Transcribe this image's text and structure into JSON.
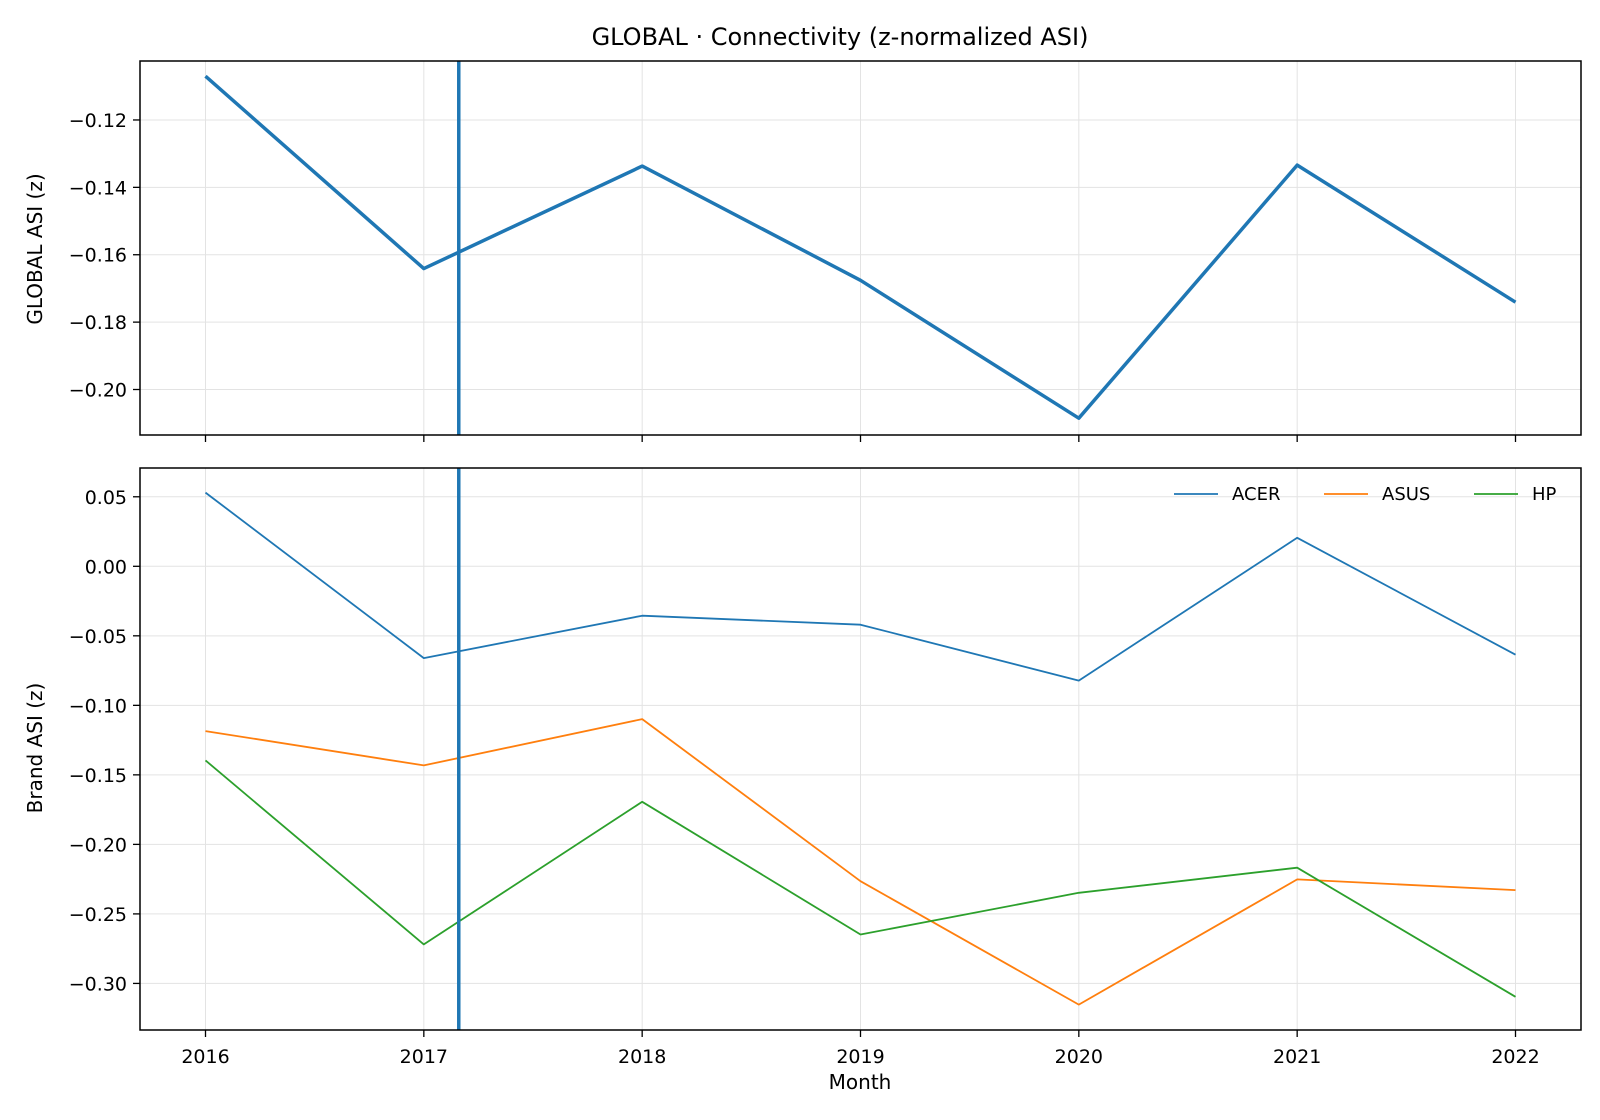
{
  "chart_data": [
    {
      "type": "line",
      "title": "GLOBAL · Connectivity (z-normalized ASI)",
      "xlabel": "",
      "ylabel": "GLOBAL ASI (z)",
      "x": [
        2016,
        2017,
        2018,
        2019,
        2020,
        2021,
        2022
      ],
      "xlim": [
        2015.7,
        2022.3
      ],
      "ylim": [
        -0.2135,
        -0.1025
      ],
      "yticks": [
        -0.12,
        -0.14,
        -0.16,
        -0.18,
        -0.2
      ],
      "ytick_labels": [
        "−0.12",
        "−0.14",
        "−0.16",
        "−0.18",
        "−0.20"
      ],
      "grid": true,
      "marker_x": 2017.16,
      "series": [
        {
          "color": "#1f77b4",
          "values": [
            -0.107,
            -0.1641,
            -0.1337,
            -0.1676,
            -0.2085,
            -0.1334,
            -0.1741
          ]
        }
      ]
    },
    {
      "type": "line",
      "title": "",
      "xlabel": "Month",
      "ylabel": "Brand ASI (z)",
      "x": [
        2016,
        2017,
        2018,
        2019,
        2020,
        2021,
        2022
      ],
      "xticks": [
        2016,
        2017,
        2018,
        2019,
        2020,
        2021,
        2022
      ],
      "xtick_labels": [
        "2016",
        "2017",
        "2018",
        "2019",
        "2020",
        "2021",
        "2022"
      ],
      "xlim": [
        2015.7,
        2022.3
      ],
      "ylim": [
        -0.3335,
        0.0707
      ],
      "yticks": [
        0.05,
        0.0,
        -0.05,
        -0.1,
        -0.15,
        -0.2,
        -0.25,
        -0.3
      ],
      "ytick_labels": [
        "0.05",
        "0.00",
        "−0.05",
        "−0.10",
        "−0.15",
        "−0.20",
        "−0.25",
        "−0.30"
      ],
      "grid": true,
      "legend": "top-right",
      "marker_x": 2017.16,
      "series": [
        {
          "name": "ACER",
          "color": "#1f77b4",
          "values": [
            0.053,
            -0.066,
            -0.0355,
            -0.042,
            -0.0822,
            0.0205,
            -0.0636
          ]
        },
        {
          "name": "ASUS",
          "color": "#ff7f0e",
          "values": [
            -0.1185,
            -0.1432,
            -0.1099,
            -0.2265,
            -0.3152,
            -0.2252,
            -0.2329
          ]
        },
        {
          "name": "HP",
          "color": "#2ca02c",
          "values": [
            -0.1396,
            -0.2719,
            -0.1694,
            -0.2648,
            -0.2348,
            -0.2168,
            -0.3096
          ]
        }
      ]
    }
  ]
}
